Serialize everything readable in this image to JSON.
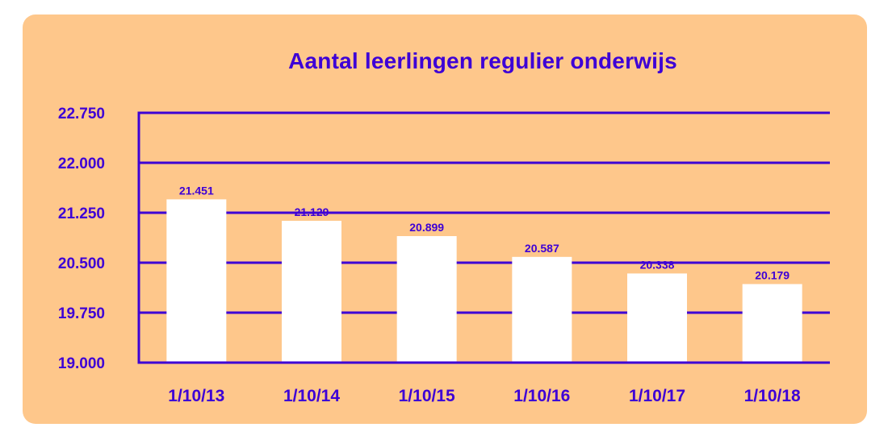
{
  "chart_data": {
    "type": "bar",
    "title": "Aantal leerlingen regulier onderwijs",
    "xlabel": "",
    "ylabel": "",
    "categories": [
      "1/10/13",
      "1/10/14",
      "1/10/15",
      "1/10/16",
      "1/10/17",
      "1/10/18"
    ],
    "values": [
      21451,
      21129,
      20899,
      20587,
      20338,
      20179
    ],
    "value_labels": [
      "21.451",
      "21.129",
      "20.899",
      "20.587",
      "20.338",
      "20.179"
    ],
    "ylim": [
      19000,
      22750
    ],
    "yticks": [
      19000,
      19750,
      20500,
      21250,
      22000,
      22750
    ],
    "ytick_labels": [
      "19.000",
      "19.750",
      "20.500",
      "21.250",
      "22.000",
      "22.750"
    ],
    "grid": true,
    "legend": "none",
    "colors": {
      "background": "#fec78b",
      "bar": "#ffffff",
      "axis": "#3d00d6",
      "text": "#3d00d6"
    }
  }
}
